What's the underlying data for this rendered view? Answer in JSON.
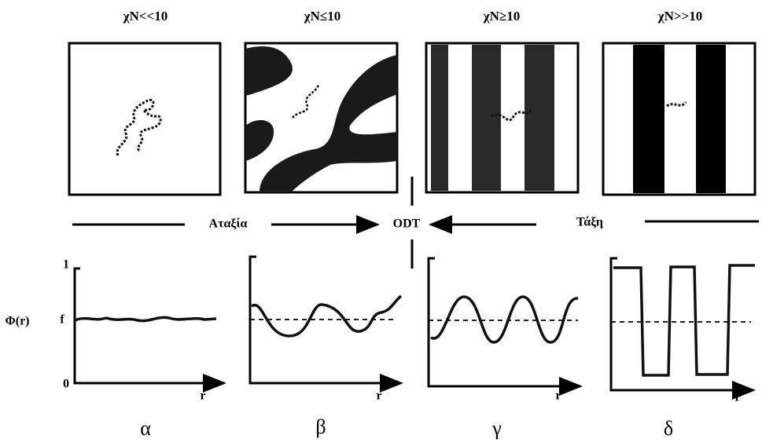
{
  "panels": [
    {
      "title": "χN<<10",
      "x_label": "r",
      "letter": "α"
    },
    {
      "title": "χN≤10",
      "x_label": "r",
      "letter": "β"
    },
    {
      "title": "χN≥10",
      "x_label": "r",
      "letter": "γ"
    },
    {
      "title": "χN>>10",
      "x_label": "r",
      "letter": "δ"
    }
  ],
  "transition": {
    "disorder": "Αταξία",
    "odt": "ODT",
    "order": "Τάξη"
  },
  "axis": {
    "y_label": "Φ(r)",
    "f_label": "f",
    "top_label": "1",
    "zero_label": "0"
  }
}
